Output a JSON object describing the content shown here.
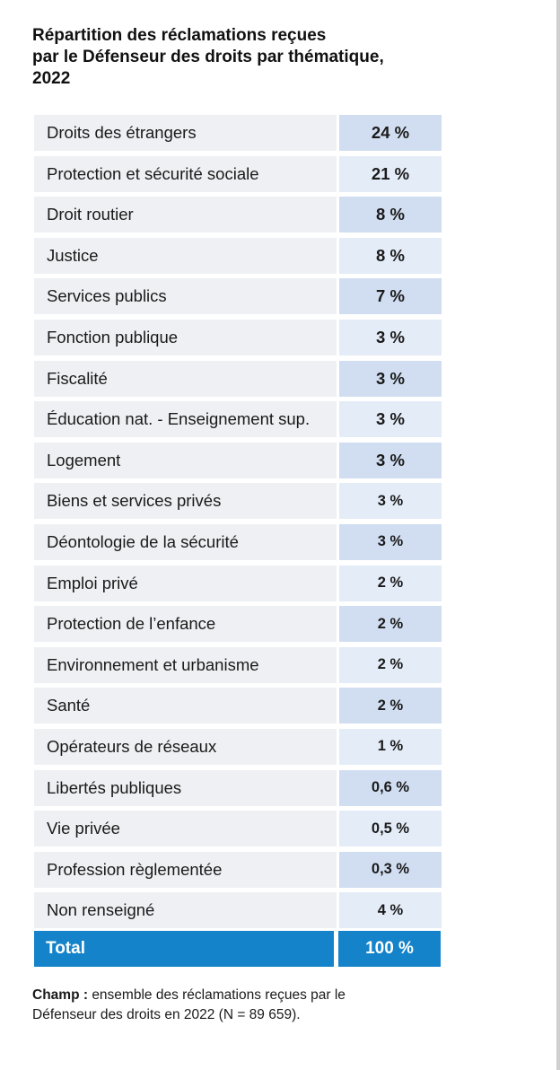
{
  "title_lines": [
    "Répartition des réclamations reçues",
    "par le Défenseur des droits par thématique,",
    "2022"
  ],
  "rows": [
    {
      "label": "Droits des étrangers",
      "value": "24 %"
    },
    {
      "label": "Protection et sécurité sociale",
      "value": "21 %"
    },
    {
      "label": "Droit routier",
      "value": "8 %"
    },
    {
      "label": "Justice",
      "value": "8 %"
    },
    {
      "label": "Services publics",
      "value": "7 %"
    },
    {
      "label": "Fonction publique",
      "value": "3 %"
    },
    {
      "label": "Fiscalité",
      "value": "3 %"
    },
    {
      "label": "Éducation nat. - Enseignement sup.",
      "value": "3 %"
    },
    {
      "label": "Logement",
      "value": "3 %"
    },
    {
      "label": "Biens et services privés",
      "value": "3 %"
    },
    {
      "label": "Déontologie de la sécurité",
      "value": "3 %"
    },
    {
      "label": "Emploi privé",
      "value": "2 %"
    },
    {
      "label": "Protection de l’enfance",
      "value": "2 %"
    },
    {
      "label": "Environnement et urbanisme",
      "value": "2 %"
    },
    {
      "label": "Santé",
      "value": "2 %"
    },
    {
      "label": "Opérateurs de réseaux",
      "value": "1 %"
    },
    {
      "label": "Libertés publiques",
      "value": "0,6 %"
    },
    {
      "label": "Vie privée",
      "value": "0,5 %"
    },
    {
      "label": "Profession règlementée",
      "value": "0,3 %"
    },
    {
      "label": "Non renseigné",
      "value": "4 %"
    }
  ],
  "total": {
    "label": "Total",
    "value": "100 %"
  },
  "note": {
    "label": "Champ :",
    "line1": "ensemble des réclamations reçues par le",
    "line2": "Défenseur des droits en 2022 (N = 89 659)."
  },
  "colors": {
    "accent": "#1583c9",
    "value_cell_dark": "#d1def1",
    "value_cell_light": "#e4ecf7",
    "label_cell": "#eef0f3"
  }
}
